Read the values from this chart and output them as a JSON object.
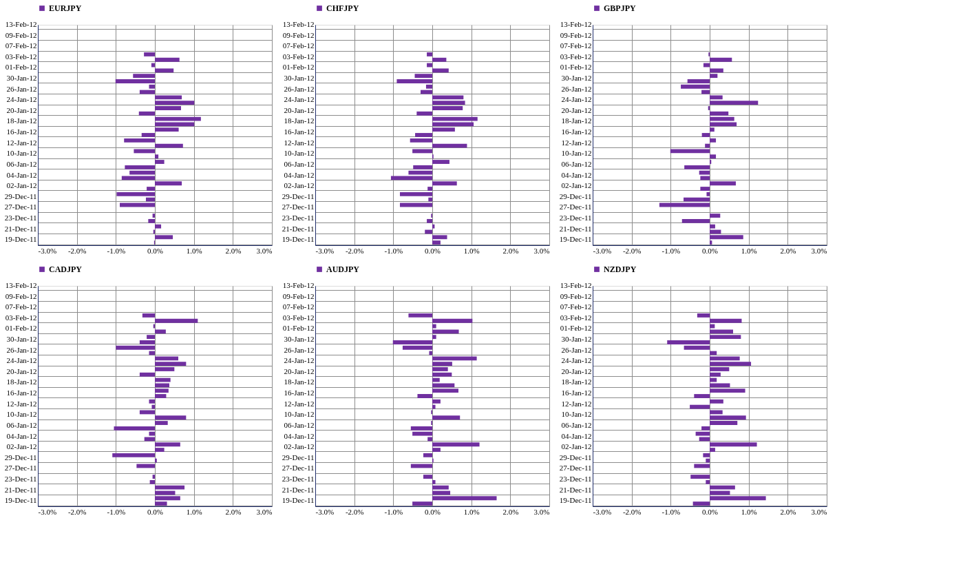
{
  "chart_data": [
    {
      "type": "bar",
      "orientation": "horizontal",
      "legend": "top",
      "grid": true,
      "xlim": [
        -3,
        3
      ],
      "xticks": [
        {
          "value": -3,
          "label": "-3.0%"
        },
        {
          "value": -2,
          "label": "-2.0%"
        },
        {
          "value": -1,
          "label": "-1.0%"
        },
        {
          "value": 0,
          "label": "0.0%"
        },
        {
          "value": 1,
          "label": "1.0%"
        },
        {
          "value": 2,
          "label": "2.0%"
        },
        {
          "value": 3,
          "label": "3.0%"
        }
      ],
      "categories": [
        "13-Feb-12",
        null,
        "09-Feb-12",
        null,
        "07-Feb-12",
        null,
        "03-Feb-12",
        null,
        "01-Feb-12",
        null,
        "30-Jan-12",
        null,
        "26-Jan-12",
        null,
        "24-Jan-12",
        null,
        "20-Jan-12",
        null,
        "18-Jan-12",
        null,
        "16-Jan-12",
        null,
        "12-Jan-12",
        null,
        "10-Jan-12",
        null,
        "06-Jan-12",
        null,
        "04-Jan-12",
        null,
        "02-Jan-12",
        null,
        "29-Dec-11",
        null,
        "27-Dec-11",
        null,
        "23-Dec-11",
        null,
        "21-Dec-11",
        null,
        "19-Dec-11"
      ],
      "series": [
        {
          "name": "EURJPY",
          "color": "#7030a0",
          "values": [
            null,
            null,
            null,
            null,
            null,
            -0.28,
            0.63,
            -0.09,
            0.48,
            -0.56,
            -1.01,
            -0.15,
            -0.39,
            0.69,
            1.01,
            0.67,
            -0.41,
            1.18,
            1.01,
            0.61,
            -0.34,
            -0.79,
            0.72,
            -0.54,
            0.09,
            0.24,
            -0.77,
            -0.65,
            -0.85,
            0.69,
            -0.21,
            -0.98,
            -0.23,
            -0.9,
            null,
            -0.06,
            -0.17,
            0.16,
            -0.04,
            0.46,
            -0.02
          ]
        }
      ]
    },
    {
      "type": "bar",
      "orientation": "horizontal",
      "legend": "top",
      "grid": true,
      "xlim": [
        -3,
        3
      ],
      "xticks": [
        {
          "value": -3,
          "label": "-3.0%"
        },
        {
          "value": -2,
          "label": "-2.0%"
        },
        {
          "value": -1,
          "label": "-1.0%"
        },
        {
          "value": 0,
          "label": "0.0%"
        },
        {
          "value": 1,
          "label": "1.0%"
        },
        {
          "value": 2,
          "label": "2.0%"
        },
        {
          "value": 3,
          "label": "3.0%"
        }
      ],
      "categories": [
        "13-Feb-12",
        null,
        "09-Feb-12",
        null,
        "07-Feb-12",
        null,
        "03-Feb-12",
        null,
        "01-Feb-12",
        null,
        "30-Jan-12",
        null,
        "26-Jan-12",
        null,
        "24-Jan-12",
        null,
        "20-Jan-12",
        null,
        "18-Jan-12",
        null,
        "16-Jan-12",
        null,
        "12-Jan-12",
        null,
        "10-Jan-12",
        null,
        "06-Jan-12",
        null,
        "04-Jan-12",
        null,
        "02-Jan-12",
        null,
        "29-Dec-11",
        null,
        "27-Dec-11",
        null,
        "23-Dec-11",
        null,
        "21-Dec-11",
        null,
        "19-Dec-11"
      ],
      "series": [
        {
          "name": "CHFJPY",
          "color": "#7030a0",
          "values": [
            null,
            null,
            null,
            null,
            null,
            -0.14,
            0.36,
            -0.14,
            0.42,
            -0.45,
            -0.91,
            -0.16,
            -0.3,
            0.8,
            0.84,
            0.78,
            -0.4,
            1.16,
            1.06,
            0.58,
            -0.44,
            -0.57,
            0.89,
            -0.51,
            0.03,
            0.44,
            -0.49,
            -0.61,
            -1.06,
            0.63,
            -0.12,
            -0.83,
            -0.1,
            -0.83,
            null,
            -0.03,
            -0.14,
            0.06,
            -0.19,
            0.38,
            0.21
          ]
        }
      ]
    },
    {
      "type": "bar",
      "orientation": "horizontal",
      "legend": "top",
      "grid": true,
      "xlim": [
        -3,
        3
      ],
      "xticks": [
        {
          "value": -3,
          "label": "-3.0%"
        },
        {
          "value": -2,
          "label": "-2.0%"
        },
        {
          "value": -1,
          "label": "-1.0%"
        },
        {
          "value": 0,
          "label": "0.0%"
        },
        {
          "value": 1,
          "label": "1.0%"
        },
        {
          "value": 2,
          "label": "2.0%"
        },
        {
          "value": 3,
          "label": "3.0%"
        }
      ],
      "categories": [
        "13-Feb-12",
        null,
        "09-Feb-12",
        null,
        "07-Feb-12",
        null,
        "03-Feb-12",
        null,
        "01-Feb-12",
        null,
        "30-Jan-12",
        null,
        "26-Jan-12",
        null,
        "24-Jan-12",
        null,
        "20-Jan-12",
        null,
        "18-Jan-12",
        null,
        "16-Jan-12",
        null,
        "12-Jan-12",
        null,
        "10-Jan-12",
        null,
        "06-Jan-12",
        null,
        "04-Jan-12",
        null,
        "02-Jan-12",
        null,
        "29-Dec-11",
        null,
        "27-Dec-11",
        null,
        "23-Dec-11",
        null,
        "21-Dec-11",
        null,
        "19-Dec-11"
      ],
      "series": [
        {
          "name": "GBPJPY",
          "color": "#7030a0",
          "values": [
            null,
            null,
            null,
            null,
            null,
            -0.03,
            0.57,
            -0.16,
            0.35,
            0.2,
            -0.57,
            -0.74,
            -0.21,
            0.33,
            1.24,
            -0.04,
            0.48,
            0.63,
            0.69,
            0.12,
            -0.2,
            0.16,
            -0.12,
            -1.01,
            0.16,
            0.04,
            -0.65,
            -0.27,
            -0.24,
            0.67,
            -0.24,
            -0.08,
            -0.67,
            -1.29,
            null,
            0.27,
            -0.71,
            0.14,
            0.29,
            0.86,
            0.06
          ]
        }
      ]
    },
    {
      "type": "bar",
      "orientation": "horizontal",
      "legend": "top",
      "grid": true,
      "xlim": [
        -3,
        3
      ],
      "xticks": [
        {
          "value": -3,
          "label": "-3.0%"
        },
        {
          "value": -2,
          "label": "-2.0%"
        },
        {
          "value": -1,
          "label": "-1.0%"
        },
        {
          "value": 0,
          "label": "0.0%"
        },
        {
          "value": 1,
          "label": "1.0%"
        },
        {
          "value": 2,
          "label": "2.0%"
        },
        {
          "value": 3,
          "label": "3.0%"
        }
      ],
      "categories": [
        "13-Feb-12",
        null,
        "09-Feb-12",
        null,
        "07-Feb-12",
        null,
        "03-Feb-12",
        null,
        "01-Feb-12",
        null,
        "30-Jan-12",
        null,
        "26-Jan-12",
        null,
        "24-Jan-12",
        null,
        "20-Jan-12",
        null,
        "18-Jan-12",
        null,
        "16-Jan-12",
        null,
        "12-Jan-12",
        null,
        "10-Jan-12",
        null,
        "06-Jan-12",
        null,
        "04-Jan-12",
        null,
        "02-Jan-12",
        null,
        "29-Dec-11",
        null,
        "27-Dec-11",
        null,
        "23-Dec-11",
        null,
        "21-Dec-11",
        null,
        "19-Dec-11"
      ],
      "series": [
        {
          "name": "CADJPY",
          "color": "#7030a0",
          "values": [
            null,
            null,
            null,
            null,
            null,
            -0.32,
            1.1,
            -0.04,
            0.28,
            -0.21,
            -0.39,
            -1.0,
            -0.15,
            0.6,
            0.8,
            0.5,
            -0.39,
            0.4,
            0.37,
            0.35,
            0.29,
            -0.15,
            -0.08,
            -0.39,
            0.8,
            0.33,
            -1.05,
            -0.15,
            -0.27,
            0.65,
            0.24,
            -1.09,
            0.05,
            -0.47,
            null,
            -0.06,
            -0.13,
            0.76,
            0.52,
            0.65,
            0.31
          ]
        }
      ]
    },
    {
      "type": "bar",
      "orientation": "horizontal",
      "legend": "top",
      "grid": true,
      "xlim": [
        -3,
        3
      ],
      "xticks": [
        {
          "value": -3,
          "label": "-3.0%"
        },
        {
          "value": -2,
          "label": "-2.0%"
        },
        {
          "value": -1,
          "label": "-1.0%"
        },
        {
          "value": 0,
          "label": "0.0%"
        },
        {
          "value": 1,
          "label": "1.0%"
        },
        {
          "value": 2,
          "label": "2.0%"
        },
        {
          "value": 3,
          "label": "3.0%"
        }
      ],
      "categories": [
        "13-Feb-12",
        null,
        "09-Feb-12",
        null,
        "07-Feb-12",
        null,
        "03-Feb-12",
        null,
        "01-Feb-12",
        null,
        "30-Jan-12",
        null,
        "26-Jan-12",
        null,
        "24-Jan-12",
        null,
        "20-Jan-12",
        null,
        "18-Jan-12",
        null,
        "16-Jan-12",
        null,
        "12-Jan-12",
        null,
        "10-Jan-12",
        null,
        "06-Jan-12",
        null,
        "04-Jan-12",
        null,
        "02-Jan-12",
        null,
        "29-Dec-11",
        null,
        "27-Dec-11",
        null,
        "23-Dec-11",
        null,
        "21-Dec-11",
        null,
        "19-Dec-11"
      ],
      "series": [
        {
          "name": "AUDJPY",
          "color": "#7030a0",
          "values": [
            null,
            null,
            null,
            null,
            null,
            -0.61,
            1.03,
            0.1,
            0.68,
            0.1,
            -1.01,
            -0.76,
            -0.08,
            1.14,
            0.51,
            0.4,
            0.5,
            0.19,
            0.57,
            0.67,
            -0.38,
            0.21,
            0.08,
            -0.03,
            0.71,
            -0.03,
            -0.55,
            -0.51,
            -0.12,
            1.21,
            0.21,
            -0.23,
            0.03,
            -0.55,
            null,
            -0.23,
            0.08,
            0.42,
            0.46,
            1.65,
            -0.51
          ]
        }
      ]
    },
    {
      "type": "bar",
      "orientation": "horizontal",
      "legend": "top",
      "grid": true,
      "xlim": [
        -3,
        3
      ],
      "xticks": [
        {
          "value": -3,
          "label": "-3.0%"
        },
        {
          "value": -2,
          "label": "-2.0%"
        },
        {
          "value": -1,
          "label": "-1.0%"
        },
        {
          "value": 0,
          "label": "0.0%"
        },
        {
          "value": 1,
          "label": "1.0%"
        },
        {
          "value": 2,
          "label": "2.0%"
        },
        {
          "value": 3,
          "label": "3.0%"
        }
      ],
      "categories": [
        "13-Feb-12",
        null,
        "09-Feb-12",
        null,
        "07-Feb-12",
        null,
        "03-Feb-12",
        null,
        "01-Feb-12",
        null,
        "30-Jan-12",
        null,
        "26-Jan-12",
        null,
        "24-Jan-12",
        null,
        "20-Jan-12",
        null,
        "18-Jan-12",
        null,
        "16-Jan-12",
        null,
        "12-Jan-12",
        null,
        "10-Jan-12",
        null,
        "06-Jan-12",
        null,
        "04-Jan-12",
        null,
        "02-Jan-12",
        null,
        "29-Dec-11",
        null,
        "27-Dec-11",
        null,
        "23-Dec-11",
        null,
        "21-Dec-11",
        null,
        "19-Dec-11"
      ],
      "series": [
        {
          "name": "NZDJPY",
          "color": "#7030a0",
          "values": [
            null,
            null,
            null,
            null,
            null,
            -0.32,
            0.82,
            0.13,
            0.6,
            0.8,
            -1.09,
            -0.66,
            0.18,
            0.77,
            1.06,
            0.5,
            0.28,
            0.18,
            0.52,
            0.91,
            -0.4,
            0.35,
            -0.51,
            0.33,
            0.93,
            0.71,
            -0.21,
            -0.36,
            -0.27,
            1.21,
            0.14,
            -0.17,
            -0.1,
            -0.4,
            null,
            -0.49,
            -0.1,
            0.65,
            0.52,
            1.44,
            -0.43
          ]
        }
      ]
    }
  ]
}
